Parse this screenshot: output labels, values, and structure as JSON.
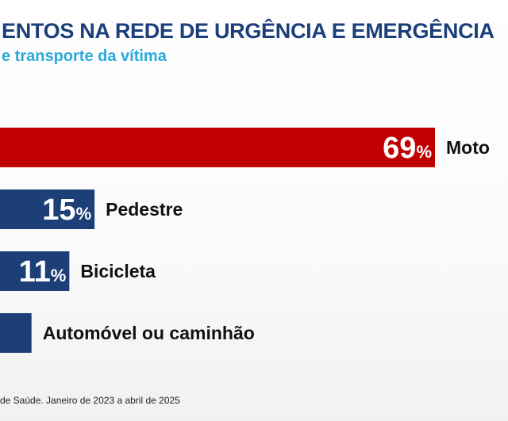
{
  "chart_data": {
    "type": "bar",
    "orientation": "horizontal",
    "title": "ENTOS NA REDE DE URGÊNCIA E EMERGÊNCIA",
    "subtitle": "e transporte da vítima",
    "categories": [
      "Moto",
      "Pedestre",
      "Bicicleta",
      "Automóvel ou caminhão"
    ],
    "values": [
      69,
      15,
      11,
      5
    ],
    "value_labels": [
      "69",
      "15",
      "11",
      ""
    ],
    "unit": "%",
    "colors": [
      "#c00000",
      "#1c3f78",
      "#1c3f78",
      "#1c3f78"
    ],
    "xlim": [
      0,
      100
    ],
    "grid": false,
    "legend": "none"
  },
  "source": "de Saúde. Janeiro de 2023 a abril de 2025"
}
